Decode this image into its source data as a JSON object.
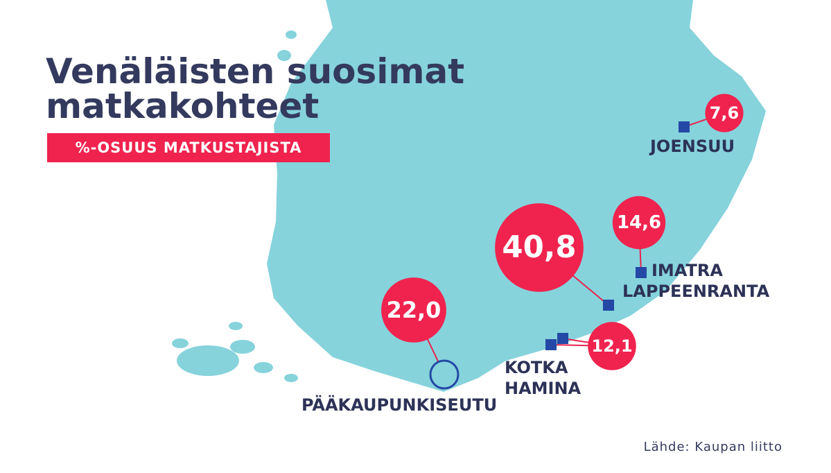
{
  "title": "Venäläisten suosimat matkakohteet",
  "subtitle": "%-OSUUS MATKUSTAJISTA",
  "source": "Lähde: Kaupan liitto",
  "destinations": [
    {
      "names": [
        "JOENSUU"
      ],
      "value": 7.6,
      "value_label": "7,6"
    },
    {
      "names": [
        "IMATRA"
      ],
      "value": 14.6,
      "value_label": "14,6"
    },
    {
      "names": [
        "LAPPEENRANTA"
      ],
      "value": 40.8,
      "value_label": "40,8"
    },
    {
      "names": [
        "KOTKA",
        "HAMINA"
      ],
      "value": 12.1,
      "value_label": "12,1"
    },
    {
      "names": [
        "PÄÄKAUPUNKISEUTU"
      ],
      "value": 22.0,
      "value_label": "22,0"
    }
  ]
}
